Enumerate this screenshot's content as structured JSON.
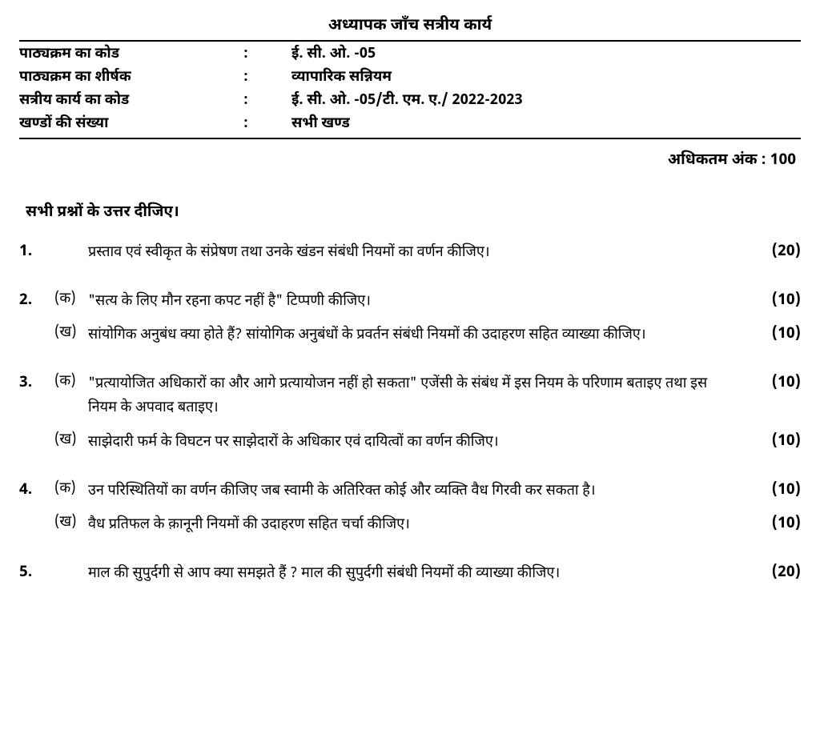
{
  "title": "अध्यापक जाँच सत्रीय कार्य",
  "header": {
    "rows": [
      {
        "label": "पाठ्यक्रम का कोड",
        "value": "ई. सी. ओ. -05"
      },
      {
        "label": "पाठ्यक्रम का शीर्षक",
        "value": "व्यापारिक सन्नियम"
      },
      {
        "label": "सत्रीय कार्य का कोड",
        "value": "ई. सी. ओ. -05/टी. एम. ए./ 2022-2023"
      },
      {
        "label": "खण्डों की संख्या",
        "value": "सभी खण्ड"
      }
    ]
  },
  "max_marks": "अधिकतम अंक : 100",
  "instruction": "सभी प्रश्नों के उत्तर दीजिए।",
  "questions": [
    {
      "number": "1.",
      "parts": [
        {
          "sublabel": "",
          "text": "प्रस्ताव एवं स्वीकृत के संप्रेषण तथा उनके खंडन संबंधी नियमों का वर्णन कीजिए।",
          "marks": "(20)"
        }
      ]
    },
    {
      "number": "2.",
      "parts": [
        {
          "sublabel": "(क)",
          "text": "\"सत्य के लिए मौन रहना कपट नहीं है\" टिप्पणी कीजिए।",
          "marks": "(10)"
        },
        {
          "sublabel": "(ख)",
          "text": "सांयोगिक अनुबंध क्या होते हैं? सांयोगिक अनुबंधों के प्रवर्तन संबंधी नियमों की उदाहरण सहित व्याख्या कीजिए।",
          "marks": "(10)"
        }
      ]
    },
    {
      "number": "3.",
      "parts": [
        {
          "sublabel": "(क)",
          "text": "\"प्रत्यायोजित अधिकारों का और आगे प्रत्यायोजन नहीं हो सकता\" एजेंसी के संबंध में इस नियम के परिणाम बताइए तथा इस नियम के अपवाद बताइए।",
          "marks": "(10)"
        },
        {
          "sublabel": "(ख)",
          "text": "साझेदारी फर्म के विघटन पर साझेदारों के अधिकार एवं दायित्वों का वर्णन कीजिए।",
          "marks": "(10)"
        }
      ]
    },
    {
      "number": "4.",
      "parts": [
        {
          "sublabel": "(क)",
          "text": "उन परिस्थितियों का वर्णन कीजिए जब स्वामी के अतिरिक्त कोई और व्यक्ति वैध गिरवी कर सकता है।",
          "marks": "(10)"
        },
        {
          "sublabel": "(ख)",
          "text": "वैध प्रतिफल के क़ानूनी नियमों की उदाहरण सहित चर्चा कीजिए।",
          "marks": "(10)"
        }
      ]
    },
    {
      "number": "5.",
      "parts": [
        {
          "sublabel": "",
          "text": "माल की सुपुर्दगी से आप क्या समझते हैं ? माल की सुपुर्दगी संबंधी नियमों की व्याख्या कीजिए।",
          "marks": "(20)"
        }
      ]
    }
  ]
}
